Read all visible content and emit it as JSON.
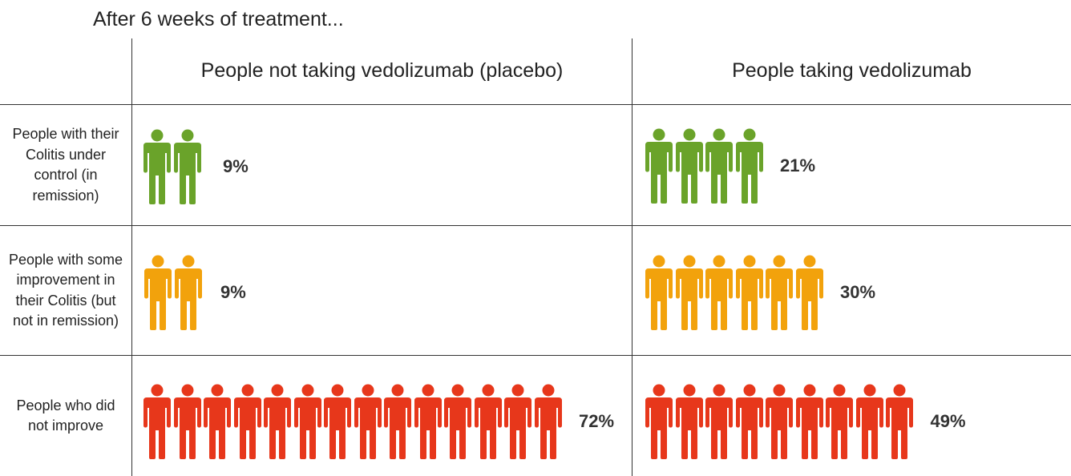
{
  "chart_data": {
    "type": "table",
    "title": "After 6 weeks of treatment...",
    "columns": [
      {
        "id": "placebo",
        "label": "People not taking vedolizumab (placebo)"
      },
      {
        "id": "vedolizumab",
        "label": "People taking vedolizumab"
      }
    ],
    "rows": [
      {
        "label": "People with their Colitis under control (in remission)",
        "color": "#6aa32a",
        "values": [
          {
            "percent": "9%",
            "icon_count": 2
          },
          {
            "percent": "21%",
            "icon_count": 4
          }
        ]
      },
      {
        "label": "People with some improvement in their Colitis (but not in remission)",
        "color": "#f2a20c",
        "values": [
          {
            "percent": "9%",
            "icon_count": 2
          },
          {
            "percent": "30%",
            "icon_count": 6
          }
        ]
      },
      {
        "label": "People who did not improve",
        "color": "#e7371b",
        "values": [
          {
            "percent": "72%",
            "icon_count": 14
          },
          {
            "percent": "49%",
            "icon_count": 9
          }
        ]
      }
    ],
    "icon": "person-icon"
  }
}
